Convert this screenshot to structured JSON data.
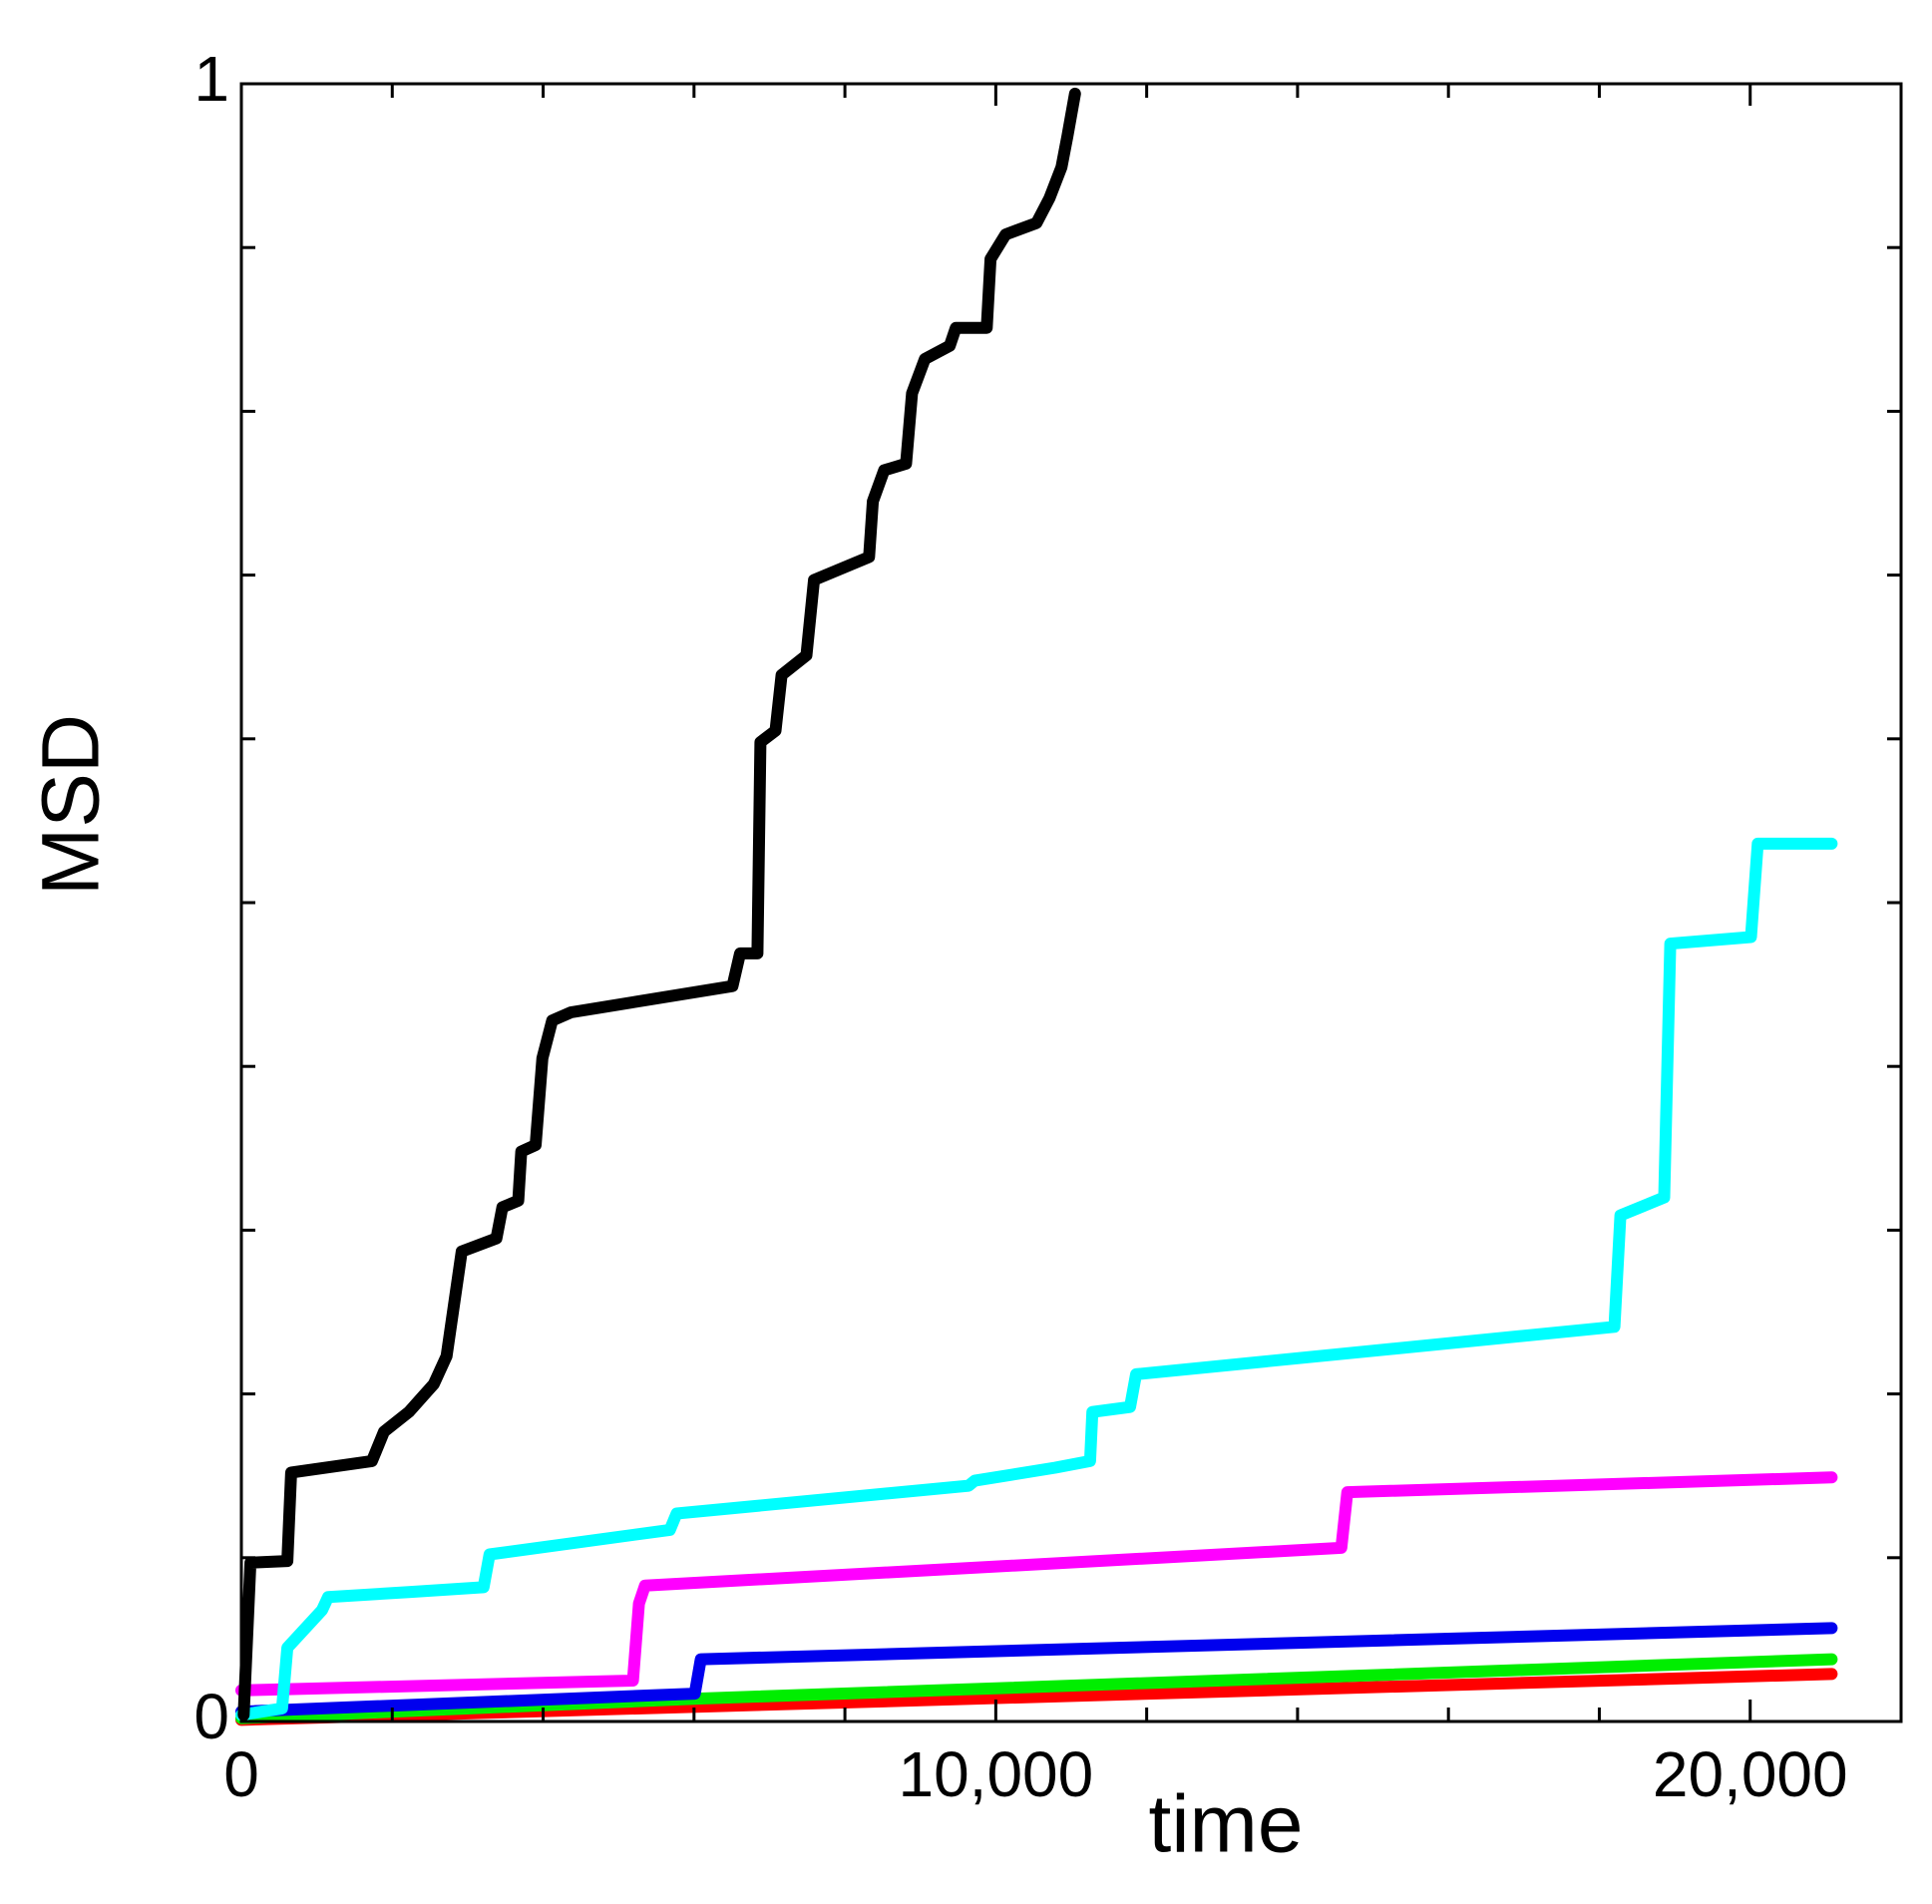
{
  "chart_data": {
    "type": "line",
    "x_label": "time",
    "y_label": "MSD",
    "xlim": [
      0,
      22000
    ],
    "ylim": [
      0,
      1
    ],
    "xticks": [
      0,
      {
        "value": 10000,
        "label": "10,000"
      },
      {
        "value": 20000,
        "label": "20,000"
      }
    ],
    "yticks": [
      0,
      1
    ],
    "xminorticks": [
      2000,
      4000,
      6000,
      8000,
      12000,
      14000,
      16000,
      18000
    ],
    "yminorticks": [
      0.1,
      0.2,
      0.3,
      0.4,
      0.5,
      0.6,
      0.7,
      0.8,
      0.9
    ],
    "series": [
      {
        "color": "#ff0000",
        "x": [
          0,
          21080
        ],
        "values": [
          0.001,
          0.029
        ]
      },
      {
        "color": "#00ee00",
        "x": [
          0,
          6090,
          21080
        ],
        "values": [
          0.002,
          0.014,
          0.038
        ]
      },
      {
        "color": "#0000ee",
        "x": [
          0,
          6010,
          6090,
          21080
        ],
        "values": [
          0.006,
          0.017,
          0.038,
          0.057
        ]
      },
      {
        "color": "#ff00ff",
        "x": [
          0,
          5190,
          5270,
          5350,
          14580,
          14660,
          21080
        ],
        "values": [
          0.019,
          0.025,
          0.072,
          0.083,
          0.106,
          0.14,
          0.149
        ]
      },
      {
        "color": "#00ffff",
        "x": [
          0,
          540,
          610,
          1070,
          1150,
          2220,
          3210,
          3290,
          5680,
          5770,
          9640,
          9720,
          10790,
          11250,
          11280,
          11780,
          11860,
          18200,
          18280,
          18860,
          18940,
          20010,
          20100,
          21080
        ],
        "values": [
          0.004,
          0.008,
          0.045,
          0.068,
          0.076,
          0.079,
          0.082,
          0.102,
          0.117,
          0.127,
          0.144,
          0.147,
          0.155,
          0.159,
          0.189,
          0.192,
          0.212,
          0.241,
          0.309,
          0.32,
          0.475,
          0.479,
          0.536,
          0.536
        ]
      },
      {
        "color": "#000000",
        "x": [
          30,
          120,
          610,
          660,
          1730,
          1890,
          2220,
          2550,
          2720,
          2920,
          3380,
          3460,
          3670,
          3710,
          3900,
          3990,
          4120,
          4370,
          6510,
          6610,
          6840,
          6880,
          7080,
          7160,
          7490,
          7590,
          8320,
          8370,
          8520,
          8810,
          8890,
          9060,
          9390,
          9470,
          9880,
          9930,
          10130,
          10540,
          10710,
          10870,
          10950,
          11050
        ],
        "values": [
          0.004,
          0.097,
          0.098,
          0.152,
          0.159,
          0.177,
          0.189,
          0.206,
          0.223,
          0.287,
          0.295,
          0.314,
          0.318,
          0.348,
          0.352,
          0.405,
          0.428,
          0.433,
          0.449,
          0.469,
          0.469,
          0.598,
          0.605,
          0.639,
          0.651,
          0.697,
          0.711,
          0.745,
          0.764,
          0.768,
          0.811,
          0.832,
          0.84,
          0.851,
          0.851,
          0.893,
          0.908,
          0.915,
          0.93,
          0.949,
          0.968,
          0.994
        ]
      }
    ]
  }
}
